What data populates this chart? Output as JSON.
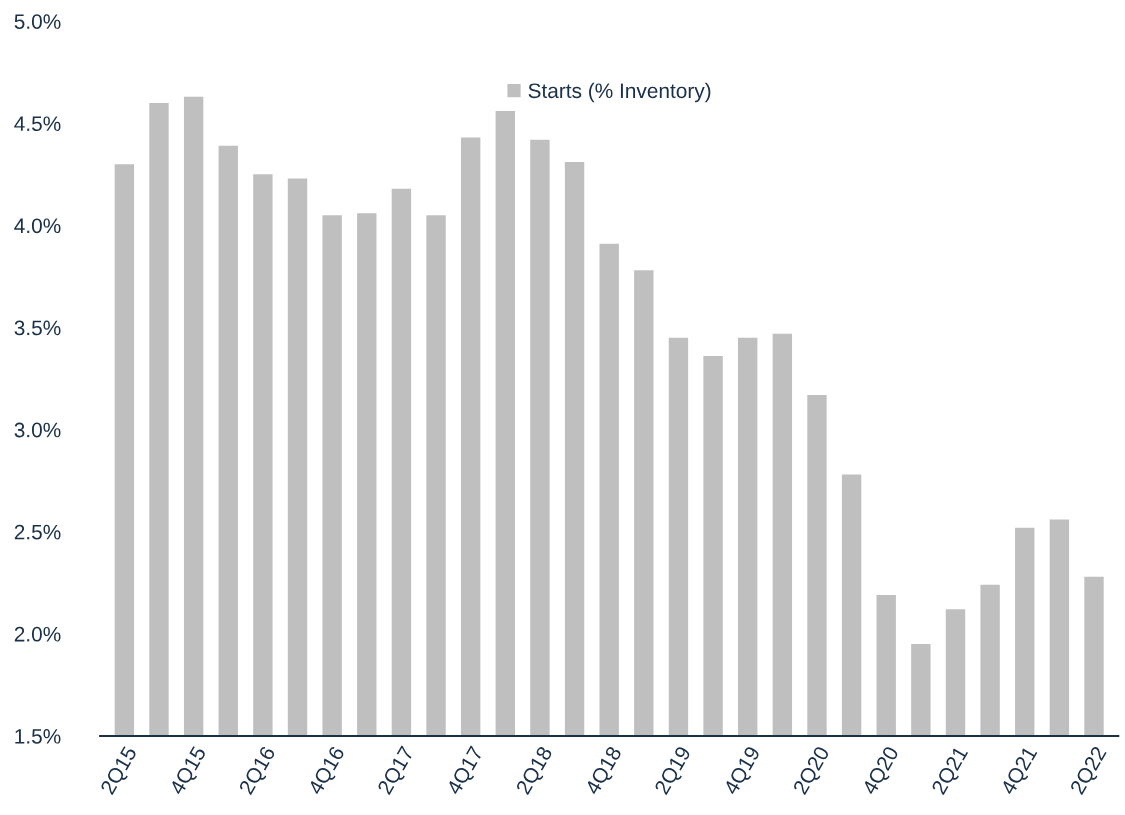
{
  "chart_data": {
    "type": "bar",
    "categories": [
      "2Q15",
      null,
      "4Q15",
      null,
      "2Q16",
      null,
      "4Q16",
      null,
      "2Q17",
      null,
      "4Q17",
      null,
      "2Q18",
      null,
      "4Q18",
      null,
      "2Q19",
      null,
      "4Q19",
      null,
      "2Q20",
      null,
      "4Q20",
      null,
      "2Q21",
      null,
      "4Q21",
      null,
      "2Q22"
    ],
    "series": [
      {
        "name": "Starts (% Inventory)",
        "color": "#bfbfbf",
        "values": [
          4.3,
          4.6,
          4.63,
          4.39,
          4.25,
          4.23,
          4.05,
          4.06,
          4.18,
          4.05,
          4.43,
          4.56,
          4.42,
          4.31,
          3.91,
          3.78,
          3.45,
          3.36,
          3.45,
          3.47,
          3.17,
          2.78,
          2.19,
          1.95,
          2.12,
          2.24,
          2.52,
          2.56,
          2.28
        ]
      }
    ],
    "ylim": [
      1.5,
      5.0
    ],
    "yticks": [
      {
        "value": 1.5,
        "label": "1.5%"
      },
      {
        "value": 2.0,
        "label": "2.0%"
      },
      {
        "value": 2.5,
        "label": "2.5%"
      },
      {
        "value": 3.0,
        "label": "3.0%"
      },
      {
        "value": 3.5,
        "label": "3.5%"
      },
      {
        "value": 4.0,
        "label": "4.0%"
      },
      {
        "value": 4.5,
        "label": "4.5%"
      },
      {
        "value": 5.0,
        "label": "5.0%"
      }
    ],
    "grid": false,
    "legend": "top"
  }
}
